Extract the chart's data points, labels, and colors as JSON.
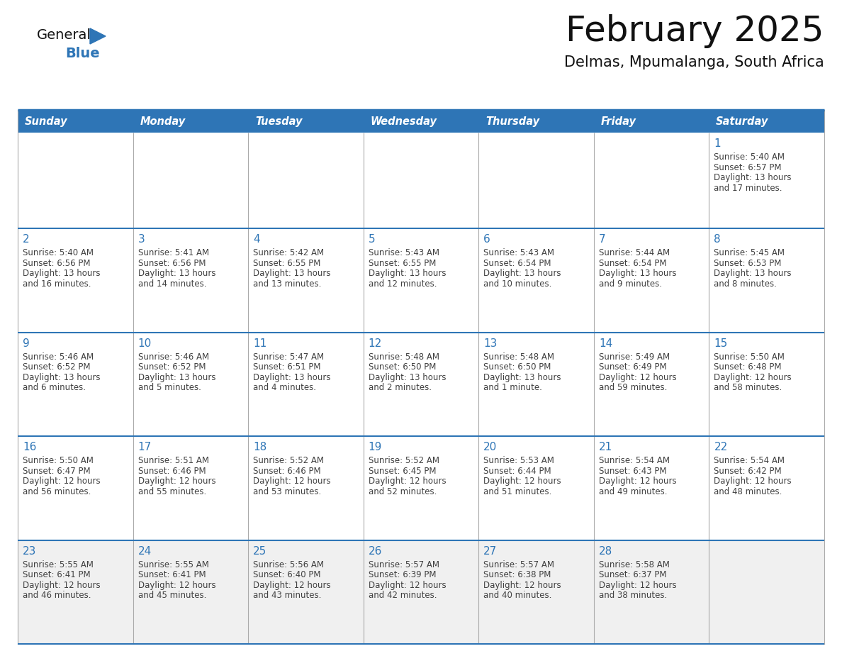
{
  "title": "February 2025",
  "subtitle": "Delmas, Mpumalanga, South Africa",
  "header_bg_color": "#2E75B6",
  "header_text_color": "#FFFFFF",
  "cell_bg_color": "#FFFFFF",
  "last_row_bg": "#F0F0F0",
  "border_color": "#2E75B6",
  "cell_border_color": "#AAAAAA",
  "title_color": "#1a1a1a",
  "subtitle_color": "#1a1a1a",
  "day_number_color": "#2E75B6",
  "day_text_color": "#404040",
  "days_of_week": [
    "Sunday",
    "Monday",
    "Tuesday",
    "Wednesday",
    "Thursday",
    "Friday",
    "Saturday"
  ],
  "weeks": [
    [
      null,
      null,
      null,
      null,
      null,
      null,
      1
    ],
    [
      2,
      3,
      4,
      5,
      6,
      7,
      8
    ],
    [
      9,
      10,
      11,
      12,
      13,
      14,
      15
    ],
    [
      16,
      17,
      18,
      19,
      20,
      21,
      22
    ],
    [
      23,
      24,
      25,
      26,
      27,
      28,
      null
    ]
  ],
  "cell_data": {
    "1": {
      "sunrise": "5:40 AM",
      "sunset": "6:57 PM",
      "daylight_hours": 13,
      "daylight_minutes": 17
    },
    "2": {
      "sunrise": "5:40 AM",
      "sunset": "6:56 PM",
      "daylight_hours": 13,
      "daylight_minutes": 16
    },
    "3": {
      "sunrise": "5:41 AM",
      "sunset": "6:56 PM",
      "daylight_hours": 13,
      "daylight_minutes": 14
    },
    "4": {
      "sunrise": "5:42 AM",
      "sunset": "6:55 PM",
      "daylight_hours": 13,
      "daylight_minutes": 13
    },
    "5": {
      "sunrise": "5:43 AM",
      "sunset": "6:55 PM",
      "daylight_hours": 13,
      "daylight_minutes": 12
    },
    "6": {
      "sunrise": "5:43 AM",
      "sunset": "6:54 PM",
      "daylight_hours": 13,
      "daylight_minutes": 10
    },
    "7": {
      "sunrise": "5:44 AM",
      "sunset": "6:54 PM",
      "daylight_hours": 13,
      "daylight_minutes": 9
    },
    "8": {
      "sunrise": "5:45 AM",
      "sunset": "6:53 PM",
      "daylight_hours": 13,
      "daylight_minutes": 8
    },
    "9": {
      "sunrise": "5:46 AM",
      "sunset": "6:52 PM",
      "daylight_hours": 13,
      "daylight_minutes": 6
    },
    "10": {
      "sunrise": "5:46 AM",
      "sunset": "6:52 PM",
      "daylight_hours": 13,
      "daylight_minutes": 5
    },
    "11": {
      "sunrise": "5:47 AM",
      "sunset": "6:51 PM",
      "daylight_hours": 13,
      "daylight_minutes": 4
    },
    "12": {
      "sunrise": "5:48 AM",
      "sunset": "6:50 PM",
      "daylight_hours": 13,
      "daylight_minutes": 2
    },
    "13": {
      "sunrise": "5:48 AM",
      "sunset": "6:50 PM",
      "daylight_hours": 13,
      "daylight_minutes": 1
    },
    "14": {
      "sunrise": "5:49 AM",
      "sunset": "6:49 PM",
      "daylight_hours": 12,
      "daylight_minutes": 59
    },
    "15": {
      "sunrise": "5:50 AM",
      "sunset": "6:48 PM",
      "daylight_hours": 12,
      "daylight_minutes": 58
    },
    "16": {
      "sunrise": "5:50 AM",
      "sunset": "6:47 PM",
      "daylight_hours": 12,
      "daylight_minutes": 56
    },
    "17": {
      "sunrise": "5:51 AM",
      "sunset": "6:46 PM",
      "daylight_hours": 12,
      "daylight_minutes": 55
    },
    "18": {
      "sunrise": "5:52 AM",
      "sunset": "6:46 PM",
      "daylight_hours": 12,
      "daylight_minutes": 53
    },
    "19": {
      "sunrise": "5:52 AM",
      "sunset": "6:45 PM",
      "daylight_hours": 12,
      "daylight_minutes": 52
    },
    "20": {
      "sunrise": "5:53 AM",
      "sunset": "6:44 PM",
      "daylight_hours": 12,
      "daylight_minutes": 51
    },
    "21": {
      "sunrise": "5:54 AM",
      "sunset": "6:43 PM",
      "daylight_hours": 12,
      "daylight_minutes": 49
    },
    "22": {
      "sunrise": "5:54 AM",
      "sunset": "6:42 PM",
      "daylight_hours": 12,
      "daylight_minutes": 48
    },
    "23": {
      "sunrise": "5:55 AM",
      "sunset": "6:41 PM",
      "daylight_hours": 12,
      "daylight_minutes": 46
    },
    "24": {
      "sunrise": "5:55 AM",
      "sunset": "6:41 PM",
      "daylight_hours": 12,
      "daylight_minutes": 45
    },
    "25": {
      "sunrise": "5:56 AM",
      "sunset": "6:40 PM",
      "daylight_hours": 12,
      "daylight_minutes": 43
    },
    "26": {
      "sunrise": "5:57 AM",
      "sunset": "6:39 PM",
      "daylight_hours": 12,
      "daylight_minutes": 42
    },
    "27": {
      "sunrise": "5:57 AM",
      "sunset": "6:38 PM",
      "daylight_hours": 12,
      "daylight_minutes": 40
    },
    "28": {
      "sunrise": "5:58 AM",
      "sunset": "6:37 PM",
      "daylight_hours": 12,
      "daylight_minutes": 38
    }
  },
  "logo_text_general": "General",
  "logo_text_blue": "Blue",
  "logo_triangle_color": "#2E75B6"
}
